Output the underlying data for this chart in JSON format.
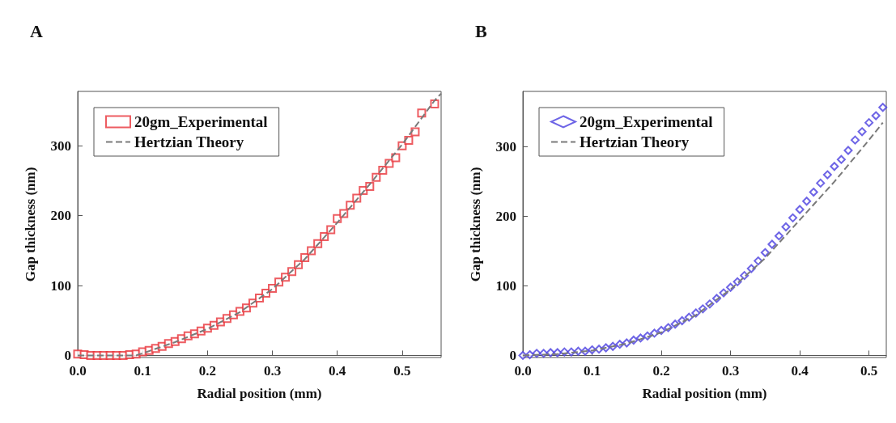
{
  "chart_data": [
    {
      "type": "scatter",
      "title": "A",
      "xlabel": "Radial position (mm)",
      "ylabel": "Gap thickness (nm)",
      "xlim": [
        0,
        0.56
      ],
      "ylim": [
        -3,
        378
      ],
      "xticks": [
        {
          "value": 0,
          "label": "0.0"
        },
        0.1,
        0.2,
        0.3,
        0.4,
        0.5
      ],
      "yticks": [
        0,
        100,
        200,
        300
      ],
      "legend": "top left",
      "series": [
        {
          "name": "20gm_Experimental",
          "marker": "square",
          "color": "#e8333a",
          "x": [
            0,
            0.01,
            0.02,
            0.03,
            0.04,
            0.05,
            0.06,
            0.07,
            0.08,
            0.09,
            0.1,
            0.11,
            0.12,
            0.13,
            0.14,
            0.15,
            0.16,
            0.17,
            0.18,
            0.19,
            0.2,
            0.21,
            0.22,
            0.23,
            0.24,
            0.25,
            0.26,
            0.27,
            0.28,
            0.29,
            0.3,
            0.31,
            0.32,
            0.33,
            0.34,
            0.35,
            0.36,
            0.37,
            0.38,
            0.39,
            0.4,
            0.41,
            0.42,
            0.43,
            0.44,
            0.45,
            0.46,
            0.47,
            0.48,
            0.49,
            0.5,
            0.51,
            0.52,
            0.53,
            0.55
          ],
          "values": [
            2,
            1,
            0,
            0,
            0,
            0,
            0,
            0,
            1,
            2,
            5,
            7,
            10,
            13,
            17,
            20,
            24,
            28,
            31,
            35,
            39,
            43,
            48,
            53,
            58,
            63,
            68,
            75,
            82,
            89,
            96,
            105,
            112,
            120,
            130,
            140,
            150,
            160,
            170,
            180,
            196,
            203,
            215,
            225,
            236,
            242,
            255,
            265,
            275,
            283,
            300,
            308,
            320,
            347,
            360
          ]
        },
        {
          "name": "Hertzian Theory",
          "type": "line",
          "marker": "none",
          "line_style": "dashed",
          "color": "#7a7a7a",
          "x": [
            0,
            0.09,
            0.1,
            0.15,
            0.2,
            0.25,
            0.3,
            0.35,
            0.4,
            0.45,
            0.5,
            0.55,
            0.56
          ],
          "values": [
            0,
            0,
            3,
            19,
            38,
            62,
            95,
            138,
            190,
            245,
            302,
            365,
            375
          ]
        }
      ]
    },
    {
      "type": "scatter",
      "title": "B",
      "xlabel": "Radial position (mm)",
      "ylabel": "Gap thickness (nm)",
      "xlim": [
        0,
        0.525
      ],
      "ylim": [
        -3,
        380
      ],
      "xticks": [
        {
          "value": 0,
          "label": "0.0"
        },
        0.1,
        0.2,
        0.3,
        0.4,
        0.5
      ],
      "yticks": [
        0,
        100,
        200,
        300
      ],
      "legend": "top left",
      "series": [
        {
          "name": "20gm_Experimental",
          "marker": "diamond",
          "color": "#4a3fe0",
          "x": [
            0,
            0.01,
            0.02,
            0.03,
            0.04,
            0.05,
            0.06,
            0.07,
            0.08,
            0.09,
            0.1,
            0.11,
            0.12,
            0.13,
            0.14,
            0.15,
            0.16,
            0.17,
            0.18,
            0.19,
            0.2,
            0.21,
            0.22,
            0.23,
            0.24,
            0.25,
            0.26,
            0.27,
            0.28,
            0.29,
            0.3,
            0.31,
            0.32,
            0.33,
            0.34,
            0.35,
            0.36,
            0.37,
            0.38,
            0.39,
            0.4,
            0.41,
            0.42,
            0.43,
            0.44,
            0.45,
            0.46,
            0.47,
            0.48,
            0.49,
            0.5,
            0.51,
            0.52
          ],
          "values": [
            0,
            1,
            3,
            3,
            4,
            4,
            5,
            5,
            6,
            6,
            8,
            9,
            11,
            13,
            16,
            18,
            22,
            25,
            28,
            32,
            36,
            40,
            45,
            50,
            55,
            61,
            67,
            74,
            82,
            90,
            98,
            106,
            115,
            125,
            136,
            148,
            160,
            172,
            185,
            198,
            210,
            222,
            235,
            248,
            260,
            272,
            282,
            295,
            310,
            322,
            335,
            345,
            357
          ]
        },
        {
          "name": "Hertzian Theory",
          "type": "line",
          "marker": "none",
          "line_style": "dashed",
          "color": "#7a7a7a",
          "x": [
            0,
            0.05,
            0.1,
            0.15,
            0.2,
            0.25,
            0.3,
            0.35,
            0.4,
            0.45,
            0.5,
            0.52
          ],
          "values": [
            0,
            2,
            7,
            17,
            33,
            58,
            95,
            140,
            195,
            250,
            310,
            335
          ]
        }
      ]
    }
  ]
}
